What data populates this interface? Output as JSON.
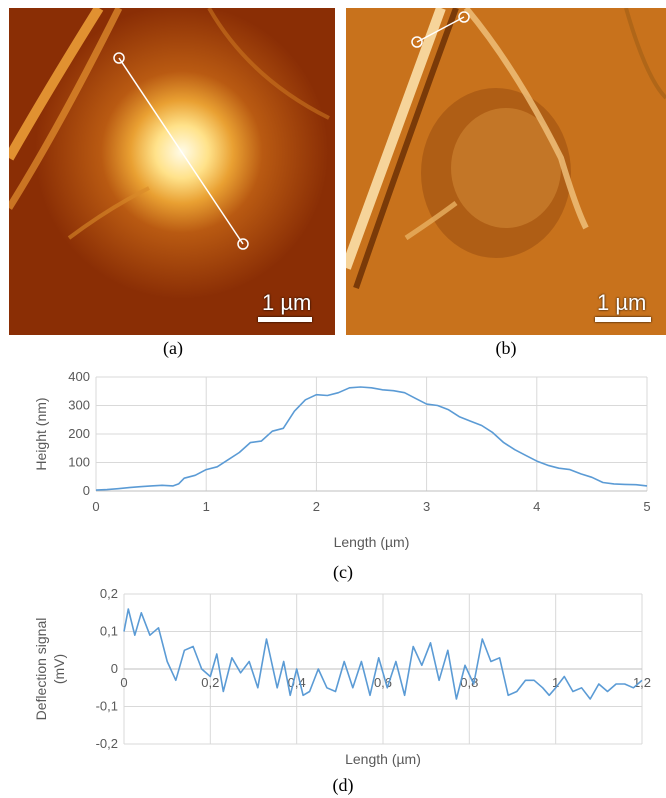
{
  "images": {
    "a": {
      "caption": "(a)",
      "scalebar": "1 µm"
    },
    "b": {
      "caption": "(b)",
      "scalebar": "1 µm"
    }
  },
  "colors": {
    "line": "#5b9bd5",
    "grid": "#d9d9d9",
    "axis_text": "#595959"
  },
  "chart_data": [
    {
      "type": "line",
      "caption": "(c)",
      "xlabel": "Length (µm)",
      "ylabel": "Height (nm)",
      "xlim": [
        0,
        5
      ],
      "ylim": [
        0,
        400
      ],
      "xticks": [
        "0",
        "1",
        "2",
        "3",
        "4",
        "5"
      ],
      "yticks": [
        "0",
        "100",
        "200",
        "300",
        "400"
      ],
      "grid": true,
      "series": [
        {
          "x": [
            0,
            0.1,
            0.2,
            0.3,
            0.4,
            0.5,
            0.6,
            0.7,
            0.75,
            0.8,
            0.9,
            1.0,
            1.1,
            1.2,
            1.3,
            1.4,
            1.5,
            1.6,
            1.7,
            1.8,
            1.9,
            2.0,
            2.1,
            2.2,
            2.3,
            2.4,
            2.5,
            2.6,
            2.7,
            2.8,
            2.9,
            3.0,
            3.1,
            3.2,
            3.3,
            3.4,
            3.5,
            3.6,
            3.7,
            3.8,
            3.9,
            4.0,
            4.1,
            4.2,
            4.3,
            4.4,
            4.5,
            4.6,
            4.7,
            4.8,
            4.9,
            5.0
          ],
          "y": [
            3,
            5,
            8,
            12,
            15,
            18,
            20,
            18,
            25,
            45,
            55,
            75,
            85,
            110,
            135,
            170,
            175,
            210,
            220,
            280,
            320,
            338,
            335,
            345,
            362,
            365,
            362,
            355,
            352,
            345,
            325,
            305,
            300,
            285,
            260,
            245,
            230,
            205,
            170,
            145,
            125,
            105,
            90,
            80,
            75,
            60,
            48,
            30,
            25,
            23,
            22,
            18
          ]
        }
      ]
    },
    {
      "type": "line",
      "caption": "(d)",
      "xlabel": "Length (µm)",
      "ylabel": "Deflection signal (mV)",
      "ylabel_lines": [
        "Deflection signal",
        "(mV)"
      ],
      "xlim": [
        0,
        1.2
      ],
      "ylim": [
        -0.2,
        0.2
      ],
      "xticks": [
        "0",
        "0,2",
        "0,4",
        "0,6",
        "0,8",
        "1",
        "1,2"
      ],
      "yticks": [
        "-0,2",
        "-0,1",
        "0",
        "0,1",
        "0,2"
      ],
      "grid": true,
      "series": [
        {
          "x": [
            0,
            0.01,
            0.025,
            0.04,
            0.06,
            0.08,
            0.1,
            0.12,
            0.14,
            0.16,
            0.18,
            0.2,
            0.215,
            0.23,
            0.25,
            0.27,
            0.29,
            0.31,
            0.33,
            0.355,
            0.37,
            0.385,
            0.4,
            0.415,
            0.43,
            0.45,
            0.47,
            0.49,
            0.51,
            0.53,
            0.55,
            0.57,
            0.59,
            0.61,
            0.63,
            0.65,
            0.67,
            0.69,
            0.71,
            0.73,
            0.75,
            0.77,
            0.79,
            0.81,
            0.83,
            0.85,
            0.87,
            0.89,
            0.91,
            0.93,
            0.95,
            0.97,
            0.985,
            1.0,
            1.02,
            1.04,
            1.06,
            1.08,
            1.1,
            1.12,
            1.14,
            1.16,
            1.18,
            1.2
          ],
          "y": [
            0.1,
            0.16,
            0.09,
            0.15,
            0.09,
            0.11,
            0.02,
            -0.03,
            0.05,
            0.06,
            0.0,
            -0.02,
            0.04,
            -0.06,
            0.03,
            -0.01,
            0.02,
            -0.05,
            0.08,
            -0.05,
            0.02,
            -0.07,
            0.0,
            -0.07,
            -0.06,
            0.0,
            -0.05,
            -0.06,
            0.02,
            -0.05,
            0.02,
            -0.07,
            0.03,
            -0.05,
            0.02,
            -0.07,
            0.06,
            0.01,
            0.07,
            -0.03,
            0.05,
            -0.08,
            0.01,
            -0.04,
            0.08,
            0.02,
            0.03,
            -0.07,
            -0.06,
            -0.03,
            -0.03,
            -0.05,
            -0.07,
            -0.05,
            -0.02,
            -0.06,
            -0.05,
            -0.08,
            -0.04,
            -0.06,
            -0.04,
            -0.04,
            -0.05,
            -0.03
          ]
        }
      ]
    }
  ]
}
